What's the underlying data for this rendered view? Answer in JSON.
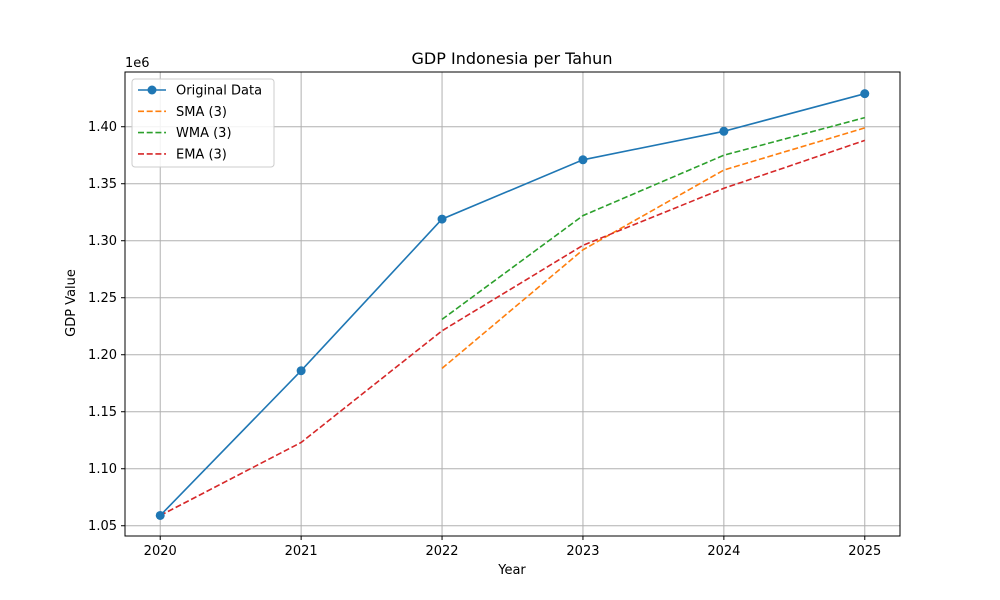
{
  "chart_data": {
    "type": "line",
    "title": "GDP Indonesia per Tahun",
    "xlabel": "Year",
    "ylabel": "GDP Value",
    "y_offset_label": "1e6",
    "x": [
      2020,
      2021,
      2022,
      2023,
      2024,
      2025
    ],
    "x_tick_labels": [
      "2020",
      "2021",
      "2022",
      "2023",
      "2024",
      "2025"
    ],
    "y_tick_values": [
      1.05,
      1.1,
      1.15,
      1.2,
      1.25,
      1.3,
      1.35,
      1.4
    ],
    "y_tick_labels": [
      "1.05",
      "1.10",
      "1.15",
      "1.20",
      "1.25",
      "1.30",
      "1.35",
      "1.40"
    ],
    "xlim": [
      2019.75,
      2025.25
    ],
    "ylim": [
      1.041,
      1.448
    ],
    "y_multiplier": 1000000,
    "grid": true,
    "legend_position": "top-left",
    "series": [
      {
        "name": "Original Data",
        "color": "#1f77b4",
        "style": "solid",
        "marker": "circle",
        "values": [
          1.059,
          1.186,
          1.319,
          1.371,
          1.396,
          1.429
        ]
      },
      {
        "name": "SMA (3)",
        "color": "#ff7f0e",
        "style": "dashed",
        "marker": "none",
        "values": [
          null,
          null,
          1.188,
          1.292,
          1.362,
          1.399
        ]
      },
      {
        "name": "WMA (3)",
        "color": "#2ca02c",
        "style": "dashed",
        "marker": "none",
        "values": [
          null,
          null,
          1.231,
          1.322,
          1.375,
          1.408
        ]
      },
      {
        "name": "EMA (3)",
        "color": "#d62728",
        "style": "dashed",
        "marker": "none",
        "values": [
          1.059,
          1.123,
          1.221,
          1.296,
          1.346,
          1.388
        ]
      }
    ]
  }
}
